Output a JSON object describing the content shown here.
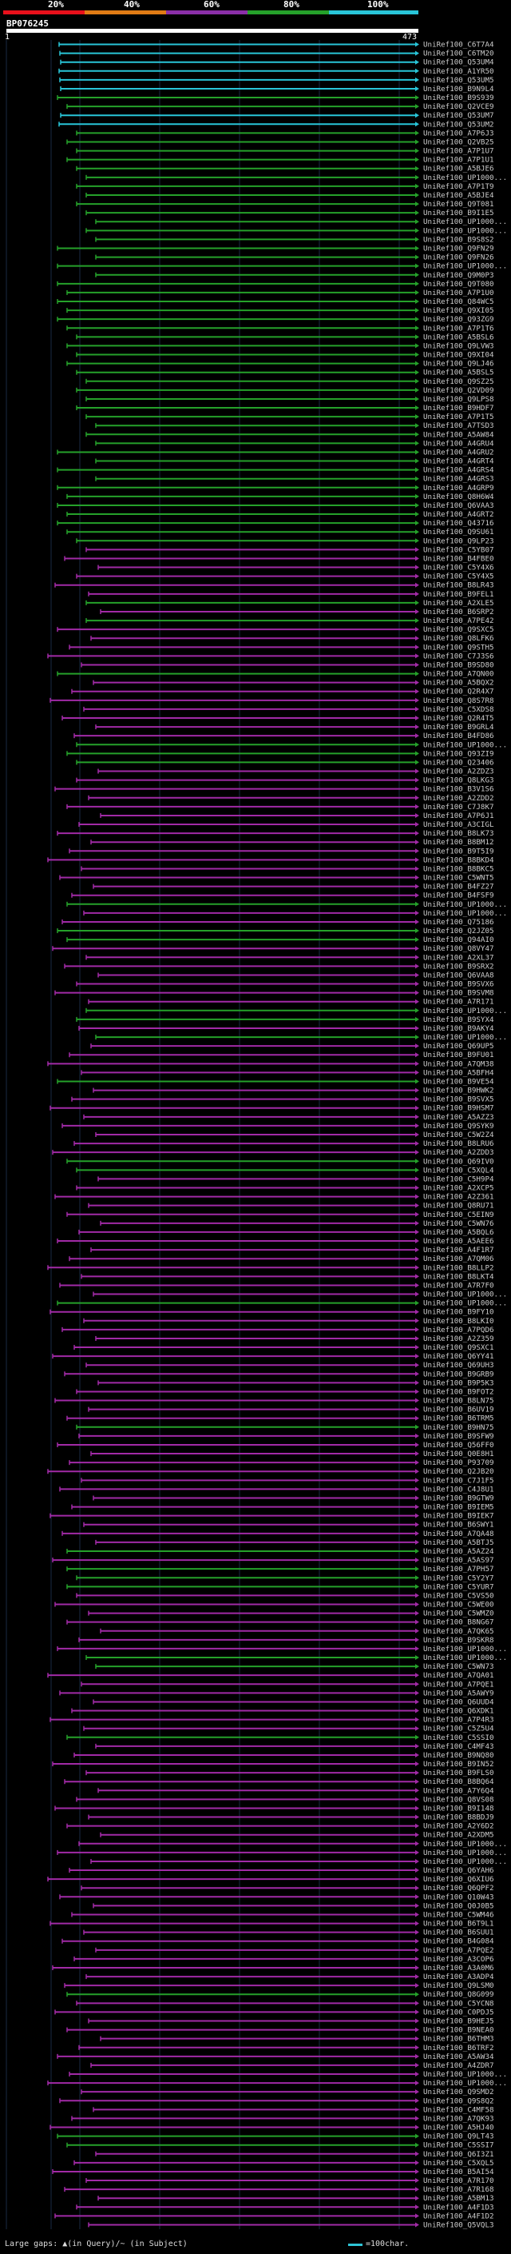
{
  "header": {
    "query_name": "BP076245",
    "scale_start": "1",
    "scale_end": "473",
    "percent_labels": [
      "20%",
      "40%",
      "60%",
      "80%",
      "100%"
    ],
    "percent_colors": [
      "#e8101b",
      "#e07b15",
      "#8b2fa8",
      "#25a12a",
      "#29c5d8"
    ]
  },
  "colors": {
    "cyan": "#29c5d8",
    "green": "#25a12a",
    "magenta": "#a12aa6",
    "query": "#ffffff"
  },
  "hits": [
    {
      "id": "UniRef100_C6T7A4",
      "c": "cyan"
    },
    {
      "id": "UniRef100_C6TM20",
      "c": "cyan"
    },
    {
      "id": "UniRef100_Q53UM4",
      "c": "cyan"
    },
    {
      "id": "UniRef100_A1YR50",
      "c": "cyan"
    },
    {
      "id": "UniRef100_Q53UM5",
      "c": "cyan"
    },
    {
      "id": "UniRef100_B9N9L4",
      "c": "cyan"
    },
    {
      "id": "UniRef100_B9S939",
      "c": "green"
    },
    {
      "id": "UniRef100_Q2VCE9",
      "c": "green"
    },
    {
      "id": "UniRef100_Q53UM7",
      "c": "cyan"
    },
    {
      "id": "UniRef100_Q53UM2",
      "c": "cyan"
    },
    {
      "id": "UniRef100_A7P6J3",
      "c": "green"
    },
    {
      "id": "UniRef100_Q2VB25",
      "c": "green"
    },
    {
      "id": "UniRef100_A7P1U7",
      "c": "green"
    },
    {
      "id": "UniRef100_A7P1U1",
      "c": "green"
    },
    {
      "id": "UniRef100_A5BJE6",
      "c": "green"
    },
    {
      "id": "UniRef100_UP1000...",
      "c": "green"
    },
    {
      "id": "UniRef100_A7P1T9",
      "c": "green"
    },
    {
      "id": "UniRef100_A5BJE4",
      "c": "green"
    },
    {
      "id": "UniRef100_Q9T081",
      "c": "green"
    },
    {
      "id": "UniRef100_B9I1E5",
      "c": "green"
    },
    {
      "id": "UniRef100_UP1000...",
      "c": "green"
    },
    {
      "id": "UniRef100_UP1000...",
      "c": "green"
    },
    {
      "id": "UniRef100_B9S8S2",
      "c": "green"
    },
    {
      "id": "UniRef100_Q9FN29",
      "c": "green"
    },
    {
      "id": "UniRef100_Q9FN26",
      "c": "green"
    },
    {
      "id": "UniRef100_UP1000...",
      "c": "green"
    },
    {
      "id": "UniRef100_Q9M0P3",
      "c": "green"
    },
    {
      "id": "UniRef100_Q9T080",
      "c": "green"
    },
    {
      "id": "UniRef100_A7P1U0",
      "c": "green"
    },
    {
      "id": "UniRef100_Q84WC5",
      "c": "green"
    },
    {
      "id": "UniRef100_Q9XI05",
      "c": "green"
    },
    {
      "id": "UniRef100_Q93ZG9",
      "c": "green"
    },
    {
      "id": "UniRef100_A7P1T6",
      "c": "green"
    },
    {
      "id": "UniRef100_A5BSL6",
      "c": "green"
    },
    {
      "id": "UniRef100_Q9LVW3",
      "c": "green"
    },
    {
      "id": "UniRef100_Q9XI04",
      "c": "green"
    },
    {
      "id": "UniRef100_Q9LJ46",
      "c": "green"
    },
    {
      "id": "UniRef100_A5BSL5",
      "c": "green"
    },
    {
      "id": "UniRef100_Q9SZ25",
      "c": "green"
    },
    {
      "id": "UniRef100_Q2VD09",
      "c": "green"
    },
    {
      "id": "UniRef100_Q9LPS8",
      "c": "green"
    },
    {
      "id": "UniRef100_B9HDF7",
      "c": "green"
    },
    {
      "id": "UniRef100_A7P1T5",
      "c": "green"
    },
    {
      "id": "UniRef100_A7TSD3",
      "c": "green"
    },
    {
      "id": "UniRef100_A5AW84",
      "c": "green"
    },
    {
      "id": "UniRef100_A4GRU4",
      "c": "green"
    },
    {
      "id": "UniRef100_A4GRU2",
      "c": "green"
    },
    {
      "id": "UniRef100_A4GRT4",
      "c": "green"
    },
    {
      "id": "UniRef100_A4GRS4",
      "c": "green"
    },
    {
      "id": "UniRef100_A4GRS3",
      "c": "green"
    },
    {
      "id": "UniRef100_A4GRP9",
      "c": "green"
    },
    {
      "id": "UniRef100_Q8H6W4",
      "c": "green"
    },
    {
      "id": "UniRef100_Q6VAA3",
      "c": "green"
    },
    {
      "id": "UniRef100_A4GRT2",
      "c": "green"
    },
    {
      "id": "UniRef100_Q43716",
      "c": "green"
    },
    {
      "id": "UniRef100_Q9SU61",
      "c": "green"
    },
    {
      "id": "UniRef100_Q9LP23",
      "c": "green"
    },
    {
      "id": "UniRef100_C5YB07",
      "c": "magenta"
    },
    {
      "id": "UniRef100_B4FBE0",
      "c": "magenta"
    },
    {
      "id": "UniRef100_C5Y4X6",
      "c": "magenta"
    },
    {
      "id": "UniRef100_C5Y4X5",
      "c": "magenta"
    },
    {
      "id": "UniRef100_B8LR43",
      "c": "magenta"
    },
    {
      "id": "UniRef100_B9FEL1",
      "c": "magenta"
    },
    {
      "id": "UniRef100_A2XLE5",
      "c": "green"
    },
    {
      "id": "UniRef100_B6SRP2",
      "c": "magenta"
    },
    {
      "id": "UniRef100_A7PE42",
      "c": "green"
    },
    {
      "id": "UniRef100_Q9SXC5",
      "c": "magenta"
    },
    {
      "id": "UniRef100_Q8LFK6",
      "c": "magenta"
    },
    {
      "id": "UniRef100_Q9STH5",
      "c": "magenta"
    },
    {
      "id": "UniRef100_C7J3S6",
      "c": "magenta"
    },
    {
      "id": "UniRef100_B9SD80",
      "c": "magenta"
    },
    {
      "id": "UniRef100_A7QN00",
      "c": "green"
    },
    {
      "id": "UniRef100_A5BQX2",
      "c": "magenta"
    },
    {
      "id": "UniRef100_Q2R4X7",
      "c": "magenta"
    },
    {
      "id": "UniRef100_Q8S7R8",
      "c": "magenta"
    },
    {
      "id": "UniRef100_C5XDS8",
      "c": "magenta"
    },
    {
      "id": "UniRef100_Q2R4T5",
      "c": "magenta"
    },
    {
      "id": "UniRef100_B9GRL4",
      "c": "magenta"
    },
    {
      "id": "UniRef100_B4FD86",
      "c": "magenta"
    },
    {
      "id": "UniRef100_UP1000...",
      "c": "green"
    },
    {
      "id": "UniRef100_Q93ZI9",
      "c": "green"
    },
    {
      "id": "UniRef100_Q23406",
      "c": "green"
    },
    {
      "id": "UniRef100_A2ZDZ3",
      "c": "magenta"
    },
    {
      "id": "UniRef100_Q8LKG3",
      "c": "magenta"
    },
    {
      "id": "UniRef100_B3V1S6",
      "c": "magenta"
    },
    {
      "id": "UniRef100_A2ZDD2",
      "c": "magenta"
    },
    {
      "id": "UniRef100_C7J8K7",
      "c": "magenta"
    },
    {
      "id": "UniRef100_A7P6J1",
      "c": "magenta"
    },
    {
      "id": "UniRef100_A3CIGL",
      "c": "magenta"
    },
    {
      "id": "UniRef100_B8LK73",
      "c": "magenta"
    },
    {
      "id": "UniRef100_B8BM12",
      "c": "magenta"
    },
    {
      "id": "UniRef100_B9T5I9",
      "c": "magenta"
    },
    {
      "id": "UniRef100_B8BKD4",
      "c": "magenta"
    },
    {
      "id": "UniRef100_B8BKC5",
      "c": "magenta"
    },
    {
      "id": "UniRef100_C5WNT5",
      "c": "magenta"
    },
    {
      "id": "UniRef100_B4FZ27",
      "c": "magenta"
    },
    {
      "id": "UniRef100_B4FSF9",
      "c": "magenta"
    },
    {
      "id": "UniRef100_UP1000...",
      "c": "green"
    },
    {
      "id": "UniRef100_UP1000...",
      "c": "magenta"
    },
    {
      "id": "UniRef100_Q75186",
      "c": "magenta"
    },
    {
      "id": "UniRef100_Q2JZ05",
      "c": "green"
    },
    {
      "id": "UniRef100_Q94AI0",
      "c": "green"
    },
    {
      "id": "UniRef100_Q8VY47",
      "c": "magenta"
    },
    {
      "id": "UniRef100_A2XL37",
      "c": "magenta"
    },
    {
      "id": "UniRef100_B9SRX2",
      "c": "magenta"
    },
    {
      "id": "UniRef100_Q6VAA8",
      "c": "magenta"
    },
    {
      "id": "UniRef100_B9SVX6",
      "c": "magenta"
    },
    {
      "id": "UniRef100_B9SVM8",
      "c": "magenta"
    },
    {
      "id": "UniRef100_A7R171",
      "c": "magenta"
    },
    {
      "id": "UniRef100_UP1000...",
      "c": "green"
    },
    {
      "id": "UniRef100_B9SYX4",
      "c": "green"
    },
    {
      "id": "UniRef100_B9AKY4",
      "c": "magenta"
    },
    {
      "id": "UniRef100_UP1000...",
      "c": "green"
    },
    {
      "id": "UniRef100_Q69UP5",
      "c": "magenta"
    },
    {
      "id": "UniRef100_B9FU01",
      "c": "magenta"
    },
    {
      "id": "UniRef100_A7QM38",
      "c": "magenta"
    },
    {
      "id": "UniRef100_A5BFH4",
      "c": "magenta"
    },
    {
      "id": "UniRef100_B9VE54",
      "c": "green"
    },
    {
      "id": "UniRef100_B9HWK2",
      "c": "magenta"
    },
    {
      "id": "UniRef100_B9SVX5",
      "c": "magenta"
    },
    {
      "id": "UniRef100_B9HSM7",
      "c": "magenta"
    },
    {
      "id": "UniRef100_A5AZZ3",
      "c": "magenta"
    },
    {
      "id": "UniRef100_Q9SYK9",
      "c": "magenta"
    },
    {
      "id": "UniRef100_C5W2Z4",
      "c": "magenta"
    },
    {
      "id": "UniRef100_B8LRU6",
      "c": "magenta"
    },
    {
      "id": "UniRef100_A2ZDD3",
      "c": "magenta"
    },
    {
      "id": "UniRef100_Q69IV0",
      "c": "green"
    },
    {
      "id": "UniRef100_C5XQL4",
      "c": "green"
    },
    {
      "id": "UniRef100_C5H9P4",
      "c": "magenta"
    },
    {
      "id": "UniRef100_A2XCP5",
      "c": "magenta"
    },
    {
      "id": "UniRef100_A2Z361",
      "c": "magenta"
    },
    {
      "id": "UniRef100_Q8RU71",
      "c": "magenta"
    },
    {
      "id": "UniRef100_C5EIN9",
      "c": "magenta"
    },
    {
      "id": "UniRef100_C5WN76",
      "c": "magenta"
    },
    {
      "id": "UniRef100_A5BQL6",
      "c": "magenta"
    },
    {
      "id": "UniRef100_A5AEE6",
      "c": "magenta"
    },
    {
      "id": "UniRef100_A4F1R7",
      "c": "magenta"
    },
    {
      "id": "UniRef100_A7QM06",
      "c": "magenta"
    },
    {
      "id": "UniRef100_B8LLP2",
      "c": "magenta"
    },
    {
      "id": "UniRef100_B8LKT4",
      "c": "magenta"
    },
    {
      "id": "UniRef100_A7R7F0",
      "c": "magenta"
    },
    {
      "id": "UniRef100_UP1000...",
      "c": "magenta"
    },
    {
      "id": "UniRef100_UP1000...",
      "c": "green"
    },
    {
      "id": "UniRef100_B9FY10",
      "c": "magenta"
    },
    {
      "id": "UniRef100_B8LKI0",
      "c": "magenta"
    },
    {
      "id": "UniRef100_A7PQD6",
      "c": "magenta"
    },
    {
      "id": "UniRef100_A2Z359",
      "c": "magenta"
    },
    {
      "id": "UniRef100_Q9SXC1",
      "c": "magenta"
    },
    {
      "id": "UniRef100_Q6YY41",
      "c": "magenta"
    },
    {
      "id": "UniRef100_Q69UH3",
      "c": "magenta"
    },
    {
      "id": "UniRef100_B9GRB9",
      "c": "magenta"
    },
    {
      "id": "UniRef100_B9P5K3",
      "c": "magenta"
    },
    {
      "id": "UniRef100_B9FOT2",
      "c": "magenta"
    },
    {
      "id": "UniRef100_B8LN75",
      "c": "magenta"
    },
    {
      "id": "UniRef100_B6UV19",
      "c": "magenta"
    },
    {
      "id": "UniRef100_B6TRM5",
      "c": "magenta"
    },
    {
      "id": "UniRef100_B9HN75",
      "c": "green"
    },
    {
      "id": "UniRef100_B9SFW9",
      "c": "magenta"
    },
    {
      "id": "UniRef100_Q56FF0",
      "c": "magenta"
    },
    {
      "id": "UniRef100_Q0E8H1",
      "c": "magenta"
    },
    {
      "id": "UniRef100_P93709",
      "c": "magenta"
    },
    {
      "id": "UniRef100_Q2JB20",
      "c": "magenta"
    },
    {
      "id": "UniRef100_C7J1F5",
      "c": "magenta"
    },
    {
      "id": "UniRef100_C4J8U1",
      "c": "magenta"
    },
    {
      "id": "UniRef100_B9GTW9",
      "c": "magenta"
    },
    {
      "id": "UniRef100_B9IEM5",
      "c": "magenta"
    },
    {
      "id": "UniRef100_B9IEK7",
      "c": "magenta"
    },
    {
      "id": "UniRef100_B6SWY1",
      "c": "magenta"
    },
    {
      "id": "UniRef100_A7QA48",
      "c": "magenta"
    },
    {
      "id": "UniRef100_A5BTJ5",
      "c": "magenta"
    },
    {
      "id": "UniRef100_A5AZ24",
      "c": "green"
    },
    {
      "id": "UniRef100_A5AS97",
      "c": "magenta"
    },
    {
      "id": "UniRef100_A7PH57",
      "c": "green"
    },
    {
      "id": "UniRef100_C5Y2Y7",
      "c": "green"
    },
    {
      "id": "UniRef100_C5YUR7",
      "c": "green"
    },
    {
      "id": "UniRef100_C5VS50",
      "c": "magenta"
    },
    {
      "id": "UniRef100_C5WE00",
      "c": "magenta"
    },
    {
      "id": "UniRef100_C5WMZ0",
      "c": "magenta"
    },
    {
      "id": "UniRef100_B8NG67",
      "c": "magenta"
    },
    {
      "id": "UniRef100_A7QK65",
      "c": "magenta"
    },
    {
      "id": "UniRef100_B9SKR8",
      "c": "magenta"
    },
    {
      "id": "UniRef100_UP1000...",
      "c": "magenta"
    },
    {
      "id": "UniRef100_UP1000...",
      "c": "green"
    },
    {
      "id": "UniRef100_C5WN73",
      "c": "green"
    },
    {
      "id": "UniRef100_A7QA01",
      "c": "magenta"
    },
    {
      "id": "UniRef100_A7PQE1",
      "c": "magenta"
    },
    {
      "id": "UniRef100_A5AWY9",
      "c": "magenta"
    },
    {
      "id": "UniRef100_Q6UUD4",
      "c": "magenta"
    },
    {
      "id": "UniRef100_Q6XDK1",
      "c": "magenta"
    },
    {
      "id": "UniRef100_A7P4R3",
      "c": "magenta"
    },
    {
      "id": "UniRef100_C5Z5U4",
      "c": "magenta"
    },
    {
      "id": "UniRef100_C5SSI0",
      "c": "green"
    },
    {
      "id": "UniRef100_C4MF43",
      "c": "magenta"
    },
    {
      "id": "UniRef100_B9NQ80",
      "c": "magenta"
    },
    {
      "id": "UniRef100_B9IN52",
      "c": "magenta"
    },
    {
      "id": "UniRef100_B9FLS0",
      "c": "magenta"
    },
    {
      "id": "UniRef100_B8BQ64",
      "c": "magenta"
    },
    {
      "id": "UniRef100_A7Y6Q4",
      "c": "magenta"
    },
    {
      "id": "UniRef100_Q8VS08",
      "c": "magenta"
    },
    {
      "id": "UniRef100_B9I148",
      "c": "magenta"
    },
    {
      "id": "UniRef100_B8BDJ9",
      "c": "magenta"
    },
    {
      "id": "UniRef100_A2Y6D2",
      "c": "magenta"
    },
    {
      "id": "UniRef100_A2XDM5",
      "c": "magenta"
    },
    {
      "id": "UniRef100_UP1000...",
      "c": "magenta"
    },
    {
      "id": "UniRef100_UP1000...",
      "c": "magenta"
    },
    {
      "id": "UniRef100_UP1000...",
      "c": "magenta"
    },
    {
      "id": "UniRef100_Q6YAH6",
      "c": "magenta"
    },
    {
      "id": "UniRef100_Q6XIU6",
      "c": "magenta"
    },
    {
      "id": "UniRef100_Q6QPF2",
      "c": "magenta"
    },
    {
      "id": "UniRef100_Q10W43",
      "c": "magenta"
    },
    {
      "id": "UniRef100_Q0J0B5",
      "c": "magenta"
    },
    {
      "id": "UniRef100_C5WM46",
      "c": "magenta"
    },
    {
      "id": "UniRef100_B6T9L1",
      "c": "magenta"
    },
    {
      "id": "UniRef100_B6SUU1",
      "c": "magenta"
    },
    {
      "id": "UniRef100_B4G084",
      "c": "magenta"
    },
    {
      "id": "UniRef100_A7PQE2",
      "c": "magenta"
    },
    {
      "id": "UniRef100_A3COP6",
      "c": "magenta"
    },
    {
      "id": "UniRef100_A3A0M6",
      "c": "magenta"
    },
    {
      "id": "UniRef100_A3ADP4",
      "c": "magenta"
    },
    {
      "id": "UniRef100_Q9LSM0",
      "c": "magenta"
    },
    {
      "id": "UniRef100_Q8G099",
      "c": "green"
    },
    {
      "id": "UniRef100_C5YCN8",
      "c": "magenta"
    },
    {
      "id": "UniRef100_C0PDJ5",
      "c": "magenta"
    },
    {
      "id": "UniRef100_B9HEJ5",
      "c": "magenta"
    },
    {
      "id": "UniRef100_B9NEA0",
      "c": "magenta"
    },
    {
      "id": "UniRef100_B6THM3",
      "c": "magenta"
    },
    {
      "id": "UniRef100_B6TRF2",
      "c": "magenta"
    },
    {
      "id": "UniRef100_A5AW34",
      "c": "magenta"
    },
    {
      "id": "UniRef100_A4ZDR7",
      "c": "magenta"
    },
    {
      "id": "UniRef100_UP1000...",
      "c": "magenta"
    },
    {
      "id": "UniRef100_UP1000...",
      "c": "magenta"
    },
    {
      "id": "UniRef100_Q9SMD2",
      "c": "magenta"
    },
    {
      "id": "UniRef100_Q9S8Q2",
      "c": "magenta"
    },
    {
      "id": "UniRef100_C4MF58",
      "c": "magenta"
    },
    {
      "id": "UniRef100_A7QK93",
      "c": "magenta"
    },
    {
      "id": "UniRef100_A5HJ40",
      "c": "magenta"
    },
    {
      "id": "UniRef100_Q9LT43",
      "c": "green"
    },
    {
      "id": "UniRef100_C5SSI7",
      "c": "green"
    },
    {
      "id": "UniRef100_Q6I3Z1",
      "c": "magenta"
    },
    {
      "id": "UniRef100_C5XQL5",
      "c": "magenta"
    },
    {
      "id": "UniRef100_B5AI54",
      "c": "magenta"
    },
    {
      "id": "UniRef100_A7R170",
      "c": "magenta"
    },
    {
      "id": "UniRef100_A7R168",
      "c": "magenta"
    },
    {
      "id": "UniRef100_A5BM13",
      "c": "magenta"
    },
    {
      "id": "UniRef100_A4F1D3",
      "c": "magenta"
    },
    {
      "id": "UniRef100_A4F1D2",
      "c": "magenta"
    },
    {
      "id": "UniRef100_Q5VQL3",
      "c": "magenta"
    }
  ],
  "legend": {
    "large_gaps": "Large gaps: ▲(in Query)/~ (in Subject)",
    "scale_note": "=100char."
  }
}
